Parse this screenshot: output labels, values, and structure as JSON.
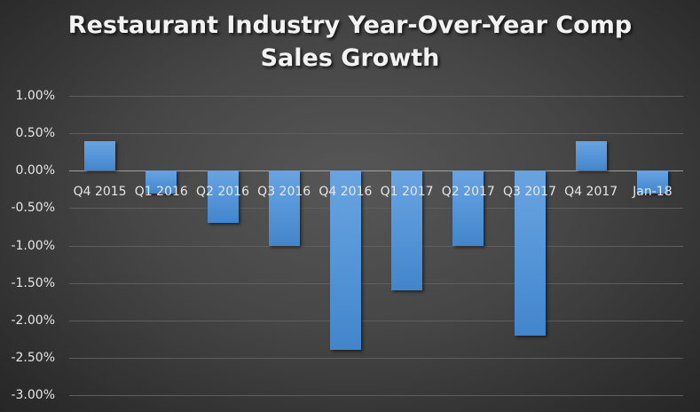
{
  "chart_data": {
    "type": "bar",
    "title": "Restaurant Industry Year-Over-Year Comp Sales Growth",
    "title_lines": [
      "Restaurant Industry Year-Over-Year Comp",
      "Sales Growth"
    ],
    "xlabel": "",
    "ylabel": "",
    "categories": [
      "Q4 2015",
      "Q1 2016",
      "Q2 2016",
      "Q3 2016",
      "Q4 2016",
      "Q1 2017",
      "Q2 2017",
      "Q3 2017",
      "Q4 2017",
      "Jan-18"
    ],
    "values": [
      0.4,
      -0.3,
      -0.7,
      -1.0,
      -2.4,
      -1.6,
      -1.0,
      -2.2,
      0.4,
      -0.3
    ],
    "value_unit": "%",
    "ylim": [
      -3.0,
      1.0
    ],
    "yticks": [
      "1.00%",
      "0.50%",
      "0.00%",
      "-0.50%",
      "-1.00%",
      "-1.50%",
      "-2.00%",
      "-2.50%",
      "-3.00%"
    ],
    "grid": true,
    "legend": null,
    "colors": {
      "bar": "#5596d8",
      "background": "#464646",
      "text": "#e6e6e6",
      "gridline": "#5e5e5e"
    }
  }
}
